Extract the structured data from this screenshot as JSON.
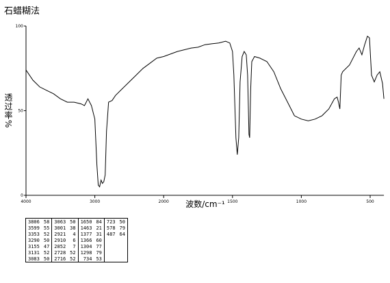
{
  "chart_data": {
    "type": "line",
    "title": "石蜡糊法",
    "x_label": "波数/cm⁻¹",
    "y_label": "透过率%",
    "x": [
      4000,
      3900,
      3800,
      3700,
      3600,
      3500,
      3400,
      3300,
      3200,
      3150,
      3100,
      3050,
      3000,
      2970,
      2950,
      2930,
      2910,
      2890,
      2870,
      2850,
      2830,
      2800,
      2750,
      2700,
      2600,
      2500,
      2400,
      2300,
      2200,
      2100,
      2000,
      1900,
      1800,
      1750,
      1700,
      1650,
      1600,
      1550,
      1520,
      1500,
      1490,
      1475,
      1465,
      1455,
      1445,
      1430,
      1415,
      1400,
      1390,
      1380,
      1375,
      1368,
      1360,
      1340,
      1300,
      1250,
      1200,
      1150,
      1100,
      1050,
      1000,
      950,
      900,
      850,
      800,
      760,
      740,
      730,
      720,
      710,
      700,
      650,
      600,
      580,
      560,
      540,
      520,
      505,
      490,
      470,
      450,
      430,
      410,
      400
    ],
    "values": [
      74,
      68,
      64,
      62,
      60,
      57,
      55,
      55,
      54,
      53,
      57,
      53,
      45,
      18,
      6,
      5,
      9,
      7,
      8,
      12,
      38,
      55,
      56,
      59,
      63,
      67,
      71,
      75,
      78,
      81,
      82,
      85,
      87,
      87.5,
      89,
      89.5,
      90,
      91,
      90,
      85,
      71,
      34,
      24,
      34,
      67,
      82,
      85,
      83,
      71,
      36,
      34,
      63,
      79,
      82,
      81,
      79,
      73,
      63,
      55,
      47,
      45,
      44,
      45,
      47,
      51,
      57,
      58,
      55,
      51,
      71,
      73,
      77,
      85,
      87,
      83,
      89,
      94,
      93,
      71,
      67,
      71,
      73,
      66,
      57
    ],
    "color": "#000000",
    "xlim": [
      4000,
      400
    ],
    "xticks": [
      4000,
      3000,
      2000,
      1500,
      1000,
      500
    ],
    "ylim": [
      0,
      100
    ],
    "yticks": [
      0,
      50,
      100
    ]
  },
  "peak_table": {
    "rows": [
      [
        3806,
        58,
        3063,
        50,
        1650,
        84,
        723,
        50
      ],
      [
        3599,
        55,
        3001,
        38,
        1463,
        21,
        578,
        79
      ],
      [
        3353,
        52,
        2921,
        4,
        1377,
        31,
        487,
        64
      ],
      [
        3290,
        50,
        2910,
        6,
        1366,
        60
      ],
      [
        3155,
        47,
        2852,
        7,
        1304,
        77
      ],
      [
        3131,
        52,
        2728,
        52,
        1298,
        79
      ],
      [
        3083,
        50,
        2716,
        52,
        734,
        53
      ]
    ]
  }
}
